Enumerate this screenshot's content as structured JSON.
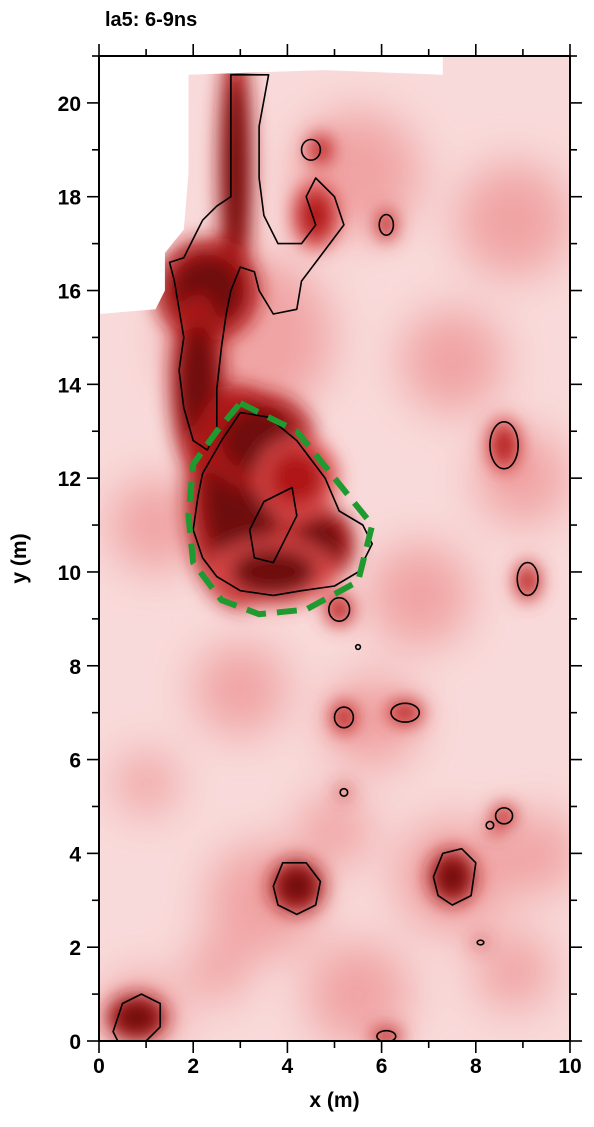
{
  "chart_data": {
    "type": "heatmap",
    "title": "la5: 6-9ns",
    "xlabel": "x (m)",
    "ylabel": "y (m)",
    "xlim": [
      0,
      10
    ],
    "ylim": [
      0,
      21
    ],
    "x_ticks": [
      "0",
      "2",
      "4",
      "6",
      "8",
      "10"
    ],
    "y_ticks": [
      "0",
      "2",
      "4",
      "6",
      "8",
      "10",
      "12",
      "14",
      "16",
      "18",
      "20"
    ],
    "grid": false,
    "colormap": [
      "#ffffff",
      "#f9dada",
      "#ee9a9a",
      "#dd4a4a",
      "#b01818",
      "#6e0f0f"
    ],
    "contour_color": "#000000",
    "highlight_color": "#1e9a30",
    "no_data_color": "#ffffff",
    "no_data_boundary": [
      [
        0,
        15.5
      ],
      [
        1.2,
        15.6
      ],
      [
        1.4,
        16.0
      ],
      [
        1.4,
        16.8
      ],
      [
        1.8,
        17.3
      ],
      [
        1.9,
        18.5
      ],
      [
        1.9,
        20.6
      ],
      [
        4.8,
        20.7
      ],
      [
        7.3,
        20.6
      ],
      [
        7.3,
        21
      ],
      [
        0,
        21
      ]
    ],
    "background_blobs": [
      {
        "x": 3.2,
        "y": 15.0,
        "r": 3.2,
        "level": 0.45
      },
      {
        "x": 5.5,
        "y": 18.5,
        "r": 2.4,
        "level": 0.45
      },
      {
        "x": 8.8,
        "y": 17.5,
        "r": 2.2,
        "level": 0.35
      },
      {
        "x": 7.5,
        "y": 14.5,
        "r": 2.0,
        "level": 0.3
      },
      {
        "x": 9.0,
        "y": 12.0,
        "r": 1.8,
        "level": 0.35
      },
      {
        "x": 1.2,
        "y": 11.0,
        "r": 1.8,
        "level": 0.4
      },
      {
        "x": 6.8,
        "y": 9.5,
        "r": 2.0,
        "level": 0.4
      },
      {
        "x": 5.8,
        "y": 6.8,
        "r": 1.8,
        "level": 0.4
      },
      {
        "x": 3.0,
        "y": 7.5,
        "r": 1.8,
        "level": 0.3
      },
      {
        "x": 1.0,
        "y": 5.5,
        "r": 1.2,
        "level": 0.3
      },
      {
        "x": 3.5,
        "y": 3.0,
        "r": 2.2,
        "level": 0.45
      },
      {
        "x": 7.5,
        "y": 3.5,
        "r": 2.2,
        "level": 0.45
      },
      {
        "x": 9.3,
        "y": 4.0,
        "r": 1.6,
        "level": 0.4
      },
      {
        "x": 5.0,
        "y": 4.5,
        "r": 1.4,
        "level": 0.35
      },
      {
        "x": 0.9,
        "y": 0.6,
        "r": 1.5,
        "level": 0.45
      },
      {
        "x": 5.5,
        "y": 1.0,
        "r": 2.0,
        "level": 0.35
      },
      {
        "x": 8.8,
        "y": 1.5,
        "r": 1.5,
        "level": 0.35
      },
      {
        "x": 2.5,
        "y": 1.5,
        "r": 1.2,
        "level": 0.3
      }
    ],
    "anomalies": [
      {
        "x": 2.9,
        "y": 18.6,
        "rx": 0.25,
        "ry": 1.9,
        "level": 0.95
      },
      {
        "x": 2.3,
        "y": 16.0,
        "rx": 0.75,
        "ry": 0.75,
        "level": 0.95
      },
      {
        "x": 2.1,
        "y": 14.0,
        "rx": 0.4,
        "ry": 1.3,
        "level": 0.95
      },
      {
        "x": 3.0,
        "y": 11.6,
        "rx": 0.8,
        "ry": 1.6,
        "level": 1.0
      },
      {
        "x": 3.4,
        "y": 12.8,
        "rx": 0.8,
        "ry": 0.7,
        "level": 1.0
      },
      {
        "x": 4.7,
        "y": 10.6,
        "rx": 0.5,
        "ry": 0.55,
        "level": 1.0
      },
      {
        "x": 3.7,
        "y": 10.0,
        "rx": 0.9,
        "ry": 0.5,
        "level": 0.9
      },
      {
        "x": 4.2,
        "y": 12.0,
        "rx": 0.6,
        "ry": 0.6,
        "level": 0.85
      },
      {
        "x": 0.8,
        "y": 0.5,
        "rx": 0.45,
        "ry": 0.35,
        "level": 0.95
      },
      {
        "x": 4.2,
        "y": 3.3,
        "rx": 0.4,
        "ry": 0.4,
        "level": 0.95
      },
      {
        "x": 7.5,
        "y": 3.5,
        "rx": 0.35,
        "ry": 0.4,
        "level": 0.95
      },
      {
        "x": 8.6,
        "y": 12.7,
        "rx": 0.25,
        "ry": 0.4,
        "level": 0.85
      },
      {
        "x": 9.1,
        "y": 9.8,
        "rx": 0.2,
        "ry": 0.3,
        "level": 0.85
      },
      {
        "x": 5.1,
        "y": 9.2,
        "rx": 0.22,
        "ry": 0.25,
        "level": 0.85
      },
      {
        "x": 6.5,
        "y": 7.0,
        "rx": 0.28,
        "ry": 0.2,
        "level": 0.8
      },
      {
        "x": 5.2,
        "y": 6.9,
        "rx": 0.2,
        "ry": 0.25,
        "level": 0.8
      },
      {
        "x": 4.7,
        "y": 19.0,
        "rx": 0.2,
        "ry": 0.25,
        "level": 0.8
      },
      {
        "x": 6.1,
        "y": 17.4,
        "rx": 0.15,
        "ry": 0.25,
        "level": 0.8
      },
      {
        "x": 4.6,
        "y": 17.6,
        "rx": 0.35,
        "ry": 0.5,
        "level": 0.75
      },
      {
        "x": 8.6,
        "y": 4.8,
        "rx": 0.18,
        "ry": 0.18,
        "level": 0.8
      },
      {
        "x": 5.2,
        "y": 5.3,
        "rx": 0.1,
        "ry": 0.1,
        "level": 0.75
      },
      {
        "x": 8.1,
        "y": 2.1,
        "rx": 0.1,
        "ry": 0.08,
        "level": 0.75
      },
      {
        "x": 8.4,
        "y": 4.5,
        "rx": 0.1,
        "ry": 0.1,
        "level": 0.75
      },
      {
        "x": 6.1,
        "y": 0.1,
        "rx": 0.25,
        "ry": 0.15,
        "level": 0.75
      }
    ],
    "contours": [
      [
        [
          1.5,
          16.6
        ],
        [
          1.8,
          16.7
        ],
        [
          2.0,
          17.1
        ],
        [
          2.2,
          17.5
        ],
        [
          2.5,
          17.8
        ],
        [
          2.8,
          18.0
        ],
        [
          2.8,
          20.6
        ],
        [
          3.6,
          20.6
        ],
        [
          3.4,
          19.5
        ],
        [
          3.4,
          18.4
        ],
        [
          3.5,
          17.6
        ],
        [
          3.8,
          17.0
        ],
        [
          4.3,
          17.0
        ],
        [
          4.6,
          17.4
        ],
        [
          4.4,
          18.0
        ],
        [
          4.6,
          18.4
        ],
        [
          5.0,
          18.0
        ],
        [
          5.2,
          17.4
        ],
        [
          4.9,
          17.0
        ],
        [
          4.6,
          16.6
        ],
        [
          4.3,
          16.2
        ],
        [
          4.2,
          15.6
        ],
        [
          3.7,
          15.5
        ],
        [
          3.4,
          16.0
        ],
        [
          3.3,
          16.4
        ],
        [
          3.0,
          16.5
        ],
        [
          2.8,
          16.0
        ],
        [
          2.7,
          15.5
        ],
        [
          2.6,
          14.8
        ],
        [
          2.5,
          13.9
        ],
        [
          2.5,
          13.0
        ],
        [
          2.3,
          12.6
        ],
        [
          2.0,
          12.8
        ],
        [
          1.8,
          13.5
        ],
        [
          1.7,
          14.3
        ],
        [
          1.8,
          15.0
        ],
        [
          1.7,
          15.6
        ],
        [
          1.6,
          16.2
        ],
        [
          1.5,
          16.6
        ]
      ],
      [
        [
          2.2,
          12.1
        ],
        [
          2.6,
          12.8
        ],
        [
          3.0,
          13.4
        ],
        [
          3.6,
          13.3
        ],
        [
          4.2,
          12.8
        ],
        [
          4.8,
          12.0
        ],
        [
          5.1,
          11.3
        ],
        [
          5.6,
          11.0
        ],
        [
          5.8,
          10.6
        ],
        [
          5.5,
          10.0
        ],
        [
          5.0,
          9.7
        ],
        [
          4.3,
          9.6
        ],
        [
          3.7,
          9.5
        ],
        [
          3.0,
          9.6
        ],
        [
          2.5,
          9.9
        ],
        [
          2.2,
          10.3
        ],
        [
          2.0,
          10.9
        ],
        [
          2.1,
          11.6
        ],
        [
          2.2,
          12.1
        ]
      ],
      [
        [
          3.5,
          11.5
        ],
        [
          4.1,
          11.8
        ],
        [
          4.2,
          11.2
        ],
        [
          3.9,
          10.6
        ],
        [
          3.7,
          10.2
        ],
        [
          3.3,
          10.3
        ],
        [
          3.2,
          10.9
        ],
        [
          3.5,
          11.5
        ]
      ],
      [
        [
          0.3,
          0.2
        ],
        [
          0.5,
          0.8
        ],
        [
          0.9,
          1.0
        ],
        [
          1.3,
          0.8
        ],
        [
          1.3,
          0.3
        ],
        [
          1.0,
          0.0
        ],
        [
          0.4,
          0.0
        ],
        [
          0.3,
          0.2
        ]
      ],
      [
        [
          3.7,
          3.3
        ],
        [
          3.9,
          3.8
        ],
        [
          4.4,
          3.8
        ],
        [
          4.7,
          3.4
        ],
        [
          4.6,
          2.9
        ],
        [
          4.2,
          2.7
        ],
        [
          3.8,
          2.9
        ],
        [
          3.7,
          3.3
        ]
      ],
      [
        [
          7.1,
          3.5
        ],
        [
          7.3,
          4.0
        ],
        [
          7.7,
          4.1
        ],
        [
          8.0,
          3.8
        ],
        [
          7.9,
          3.1
        ],
        [
          7.5,
          2.9
        ],
        [
          7.2,
          3.1
        ],
        [
          7.1,
          3.5
        ]
      ]
    ],
    "contour_ellipses": [
      {
        "x": 8.6,
        "y": 12.7,
        "rx": 0.3,
        "ry": 0.5
      },
      {
        "x": 9.1,
        "y": 9.85,
        "rx": 0.22,
        "ry": 0.35
      },
      {
        "x": 5.1,
        "y": 9.2,
        "rx": 0.22,
        "ry": 0.25
      },
      {
        "x": 4.5,
        "y": 19.0,
        "rx": 0.2,
        "ry": 0.22
      },
      {
        "x": 6.1,
        "y": 17.4,
        "rx": 0.15,
        "ry": 0.22
      },
      {
        "x": 5.2,
        "y": 6.9,
        "rx": 0.2,
        "ry": 0.22
      },
      {
        "x": 6.5,
        "y": 7.0,
        "rx": 0.3,
        "ry": 0.2
      },
      {
        "x": 8.6,
        "y": 4.8,
        "rx": 0.18,
        "ry": 0.17
      },
      {
        "x": 8.3,
        "y": 4.6,
        "rx": 0.08,
        "ry": 0.08
      },
      {
        "x": 5.2,
        "y": 5.3,
        "rx": 0.08,
        "ry": 0.08
      },
      {
        "x": 8.1,
        "y": 2.1,
        "rx": 0.07,
        "ry": 0.05
      },
      {
        "x": 6.1,
        "y": 0.1,
        "rx": 0.2,
        "ry": 0.12
      },
      {
        "x": 5.5,
        "y": 8.4,
        "rx": 0.05,
        "ry": 0.05
      }
    ],
    "highlight_region": [
      [
        3.0,
        13.6
      ],
      [
        4.2,
        13.0
      ],
      [
        5.0,
        12.0
      ],
      [
        5.8,
        11.0
      ],
      [
        5.5,
        9.8
      ],
      [
        4.4,
        9.2
      ],
      [
        3.4,
        9.1
      ],
      [
        2.6,
        9.4
      ],
      [
        2.0,
        10.2
      ],
      [
        1.9,
        11.2
      ],
      [
        2.0,
        12.3
      ],
      [
        2.5,
        13.0
      ],
      [
        3.0,
        13.6
      ]
    ]
  }
}
